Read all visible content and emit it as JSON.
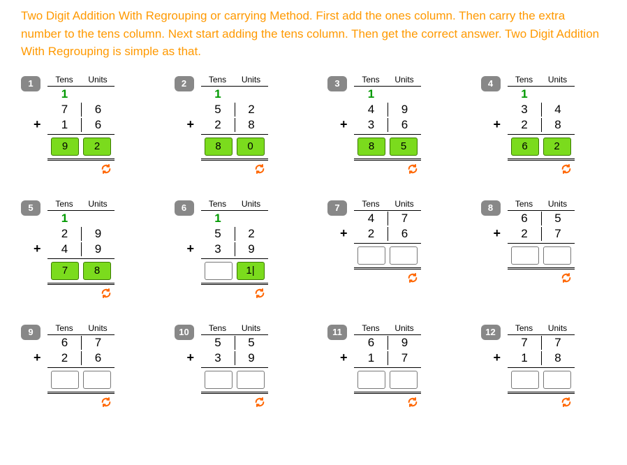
{
  "intro_text": "Two Digit Addition With Regrouping or carrying Method. First add the ones column. Then carry the extra number to the tens column. Next start adding the tens column. Then get the correct answer. Two Digit Addition With Regrouping is simple as that.",
  "intro_color": "#ff9900",
  "header_tens": "Tens",
  "header_units": "Units",
  "plus_symbol": "+",
  "carry_color": "#009900",
  "filled_bg": "#7bdb1d",
  "reload_color": "#ff6600",
  "problems": [
    {
      "num": "1",
      "carry": "1",
      "a_tens": "7",
      "a_units": "6",
      "b_tens": "1",
      "b_units": "6",
      "ans_tens": "9",
      "ans_units": "2",
      "filled": true
    },
    {
      "num": "2",
      "carry": "1",
      "a_tens": "5",
      "a_units": "2",
      "b_tens": "2",
      "b_units": "8",
      "ans_tens": "8",
      "ans_units": "0",
      "filled": true
    },
    {
      "num": "3",
      "carry": "1",
      "a_tens": "4",
      "a_units": "9",
      "b_tens": "3",
      "b_units": "6",
      "ans_tens": "8",
      "ans_units": "5",
      "filled": true
    },
    {
      "num": "4",
      "carry": "1",
      "a_tens": "3",
      "a_units": "4",
      "b_tens": "2",
      "b_units": "8",
      "ans_tens": "6",
      "ans_units": "2",
      "filled": true
    },
    {
      "num": "5",
      "carry": "1",
      "a_tens": "2",
      "a_units": "9",
      "b_tens": "4",
      "b_units": "9",
      "ans_tens": "7",
      "ans_units": "8",
      "filled": true
    },
    {
      "num": "6",
      "carry": "1",
      "a_tens": "5",
      "a_units": "2",
      "b_tens": "3",
      "b_units": "9",
      "ans_tens": "",
      "ans_units": "1|",
      "filled": true
    },
    {
      "num": "7",
      "carry": "",
      "a_tens": "4",
      "a_units": "7",
      "b_tens": "2",
      "b_units": "6",
      "ans_tens": "",
      "ans_units": "",
      "filled": false
    },
    {
      "num": "8",
      "carry": "",
      "a_tens": "6",
      "a_units": "5",
      "b_tens": "2",
      "b_units": "7",
      "ans_tens": "",
      "ans_units": "",
      "filled": false
    },
    {
      "num": "9",
      "carry": "",
      "a_tens": "6",
      "a_units": "7",
      "b_tens": "2",
      "b_units": "6",
      "ans_tens": "",
      "ans_units": "",
      "filled": false
    },
    {
      "num": "10",
      "carry": "",
      "a_tens": "5",
      "a_units": "5",
      "b_tens": "3",
      "b_units": "9",
      "ans_tens": "",
      "ans_units": "",
      "filled": false
    },
    {
      "num": "11",
      "carry": "",
      "a_tens": "6",
      "a_units": "9",
      "b_tens": "1",
      "b_units": "7",
      "ans_tens": "",
      "ans_units": "",
      "filled": false
    },
    {
      "num": "12",
      "carry": "",
      "a_tens": "7",
      "a_units": "7",
      "b_tens": "1",
      "b_units": "8",
      "ans_tens": "",
      "ans_units": "",
      "filled": false
    }
  ]
}
